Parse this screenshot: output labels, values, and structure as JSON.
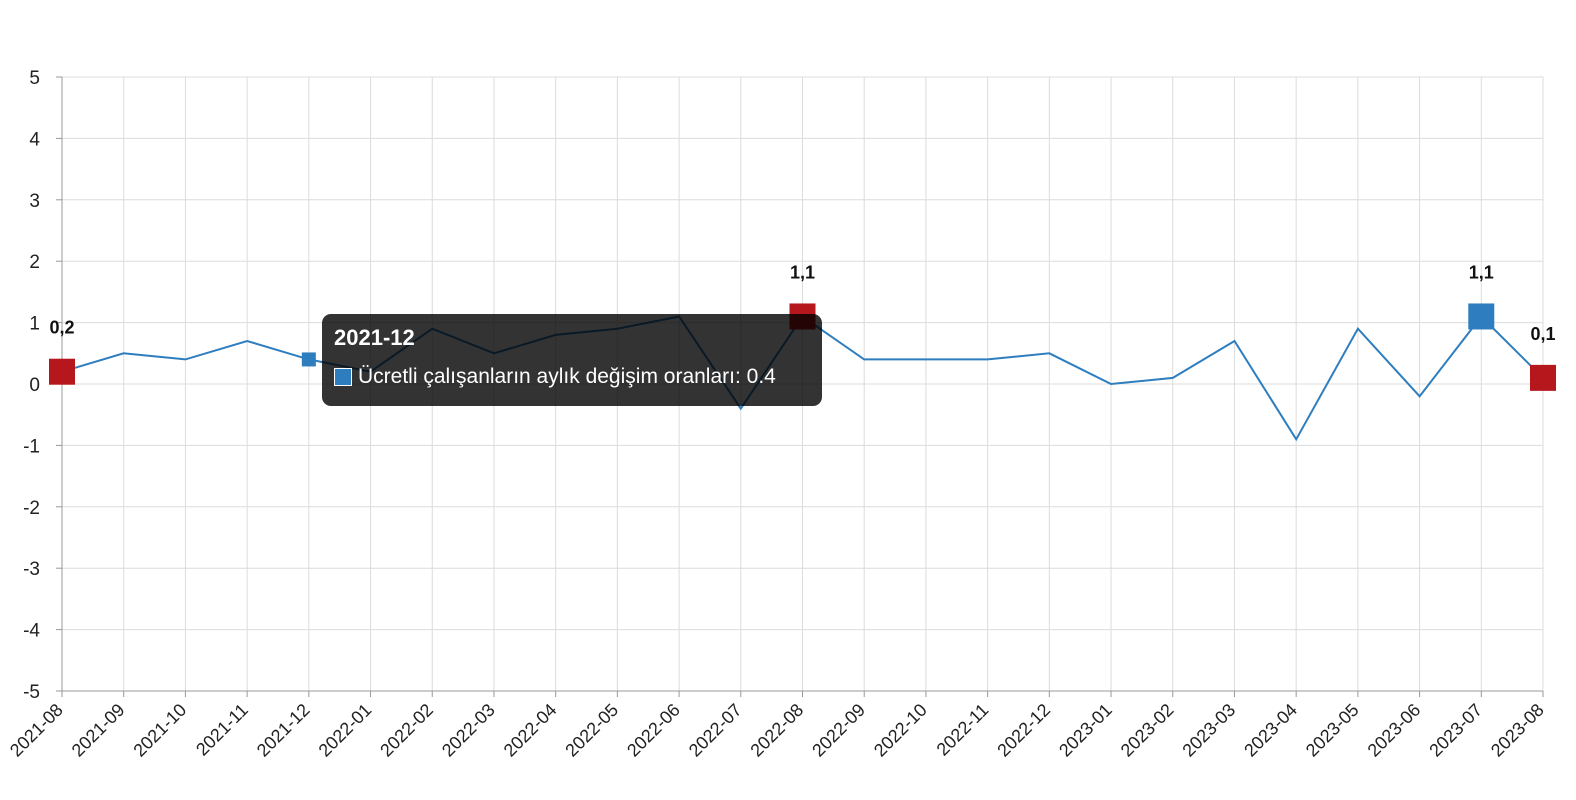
{
  "chart_data": {
    "type": "line",
    "categories": [
      "2021-08",
      "2021-09",
      "2021-10",
      "2021-11",
      "2021-12",
      "2022-01",
      "2022-02",
      "2022-03",
      "2022-04",
      "2022-05",
      "2022-06",
      "2022-07",
      "2022-08",
      "2022-09",
      "2022-10",
      "2022-11",
      "2022-12",
      "2023-01",
      "2023-02",
      "2023-03",
      "2023-04",
      "2023-05",
      "2023-06",
      "2023-07",
      "2023-08"
    ],
    "series": [
      {
        "name": "Ücretli çalışanların aylık değişim oranları",
        "values": [
          0.2,
          0.5,
          0.4,
          0.7,
          0.4,
          0.2,
          0.9,
          0.5,
          0.8,
          0.9,
          1.1,
          -0.4,
          1.1,
          0.4,
          0.4,
          0.4,
          0.5,
          0.0,
          0.1,
          0.7,
          -0.9,
          0.9,
          -0.2,
          1.1,
          0.1
        ]
      }
    ],
    "ylim": [
      -5,
      5
    ],
    "yticks": [
      "5",
      "4",
      "3",
      "2",
      "1",
      "0",
      "-1",
      "-2",
      "-3",
      "-4",
      "-5"
    ],
    "highlights": [
      {
        "index": 0,
        "label": "0,2",
        "color": "#b5171d"
      },
      {
        "index": 12,
        "label": "1,1",
        "color": "#b5171d"
      },
      {
        "index": 23,
        "label": "1,1",
        "color": "#2e7ebf"
      },
      {
        "index": 24,
        "label": "0,1",
        "color": "#b5171d"
      }
    ],
    "line_color": "#2e7ebf",
    "grid": true,
    "legend": "none"
  },
  "tooltip": {
    "title": "2021-12",
    "series_name": "Ücretli çalışanların aylık değişim oranları: 0.4",
    "swatch_color": "#2e7ebf",
    "point_index": 4
  }
}
